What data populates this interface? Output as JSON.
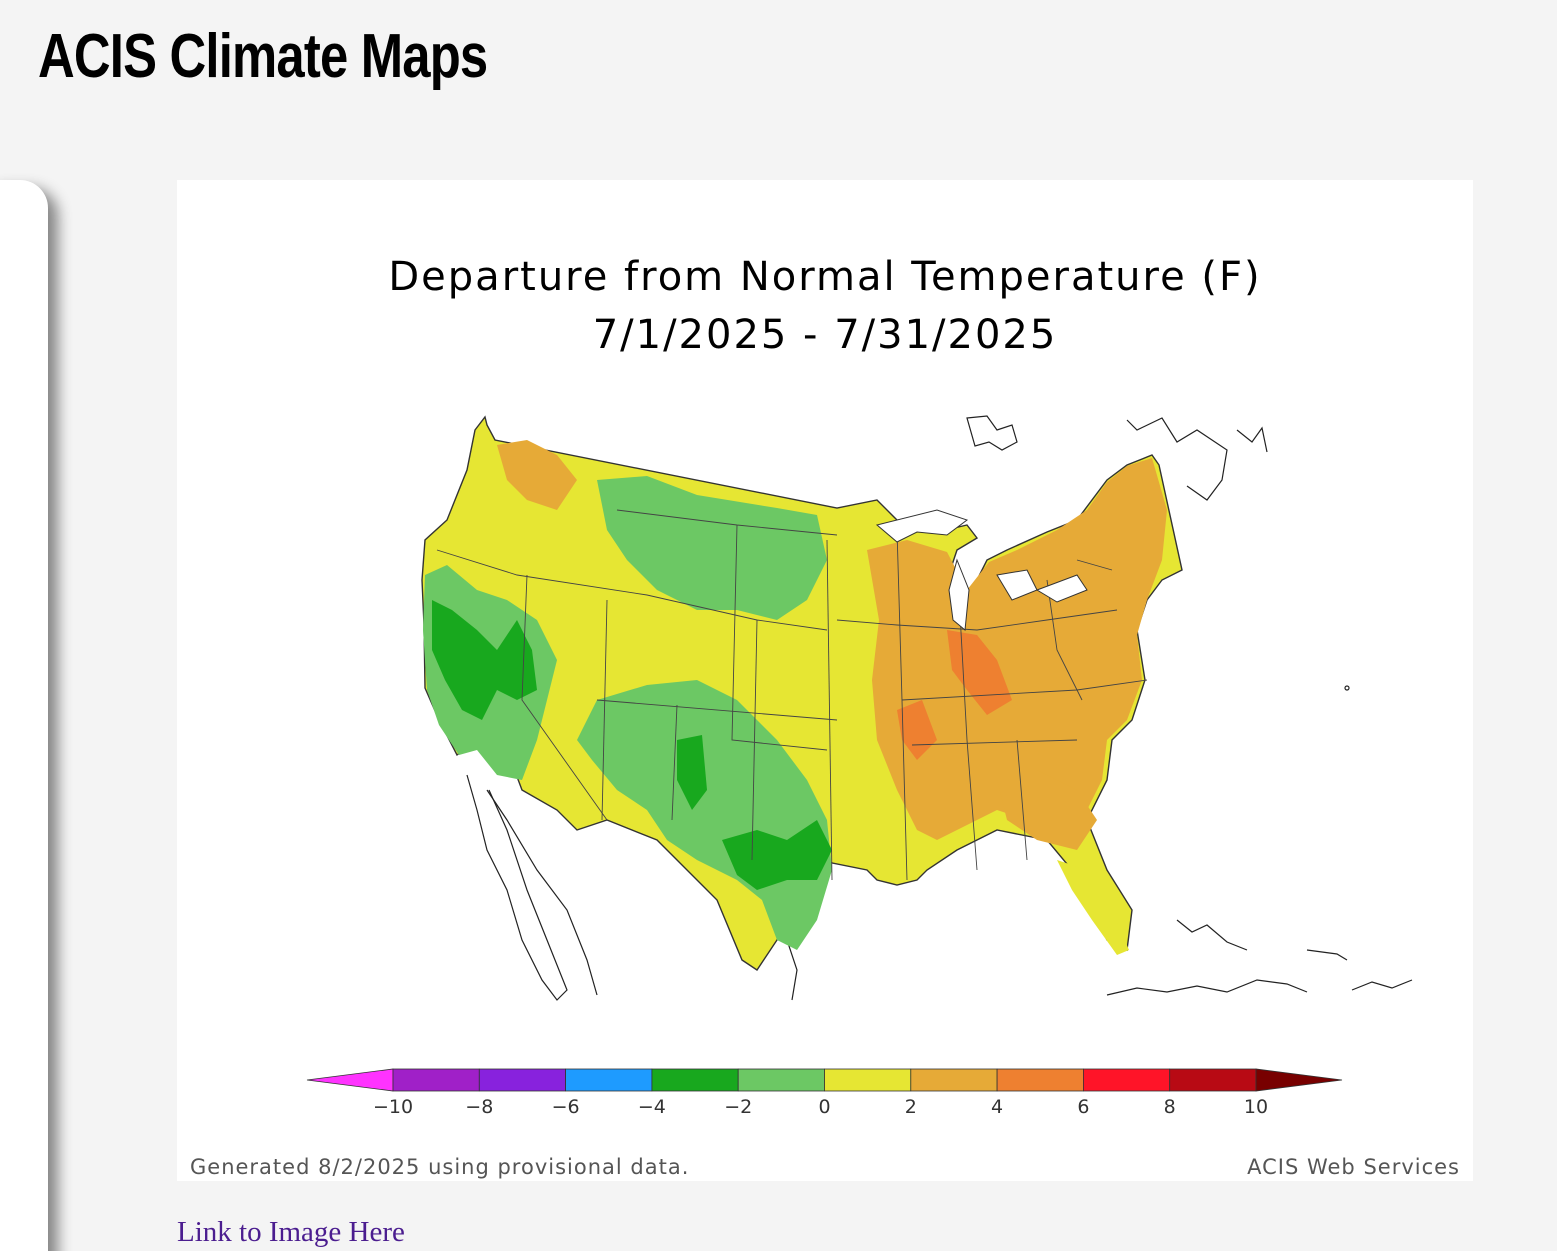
{
  "page": {
    "title": "ACIS Climate Maps",
    "link_label": "Link to Image Here"
  },
  "map": {
    "title_line1": "Departure from Normal Temperature (F)",
    "title_line2": "7/1/2025 - 7/31/2025",
    "footer_left": "Generated 8/2/2025 using provisional data.",
    "footer_right": "ACIS Web Services",
    "legend": {
      "colors": [
        "#ff33ff",
        "#a020c8",
        "#8822dd",
        "#1e9bff",
        "#18a81e",
        "#6cc864",
        "#e6e633",
        "#e6aa37",
        "#ee8030",
        "#ff1428",
        "#b80a14",
        "#780000"
      ],
      "ticks": [
        "−10",
        "−8",
        "−6",
        "−4",
        "−2",
        "0",
        "2",
        "4",
        "6",
        "8",
        "10"
      ]
    },
    "regions": {
      "west_coast": "#6cc864",
      "california_core": "#18a81e",
      "southwest": "#e6e633",
      "northern_plains": "#6cc864",
      "texas": "#6cc864",
      "texas_core": "#18a81e",
      "east": "#e6aa37",
      "southeast_coast": "#e6e633",
      "hot_spots": "#ee8030"
    }
  }
}
